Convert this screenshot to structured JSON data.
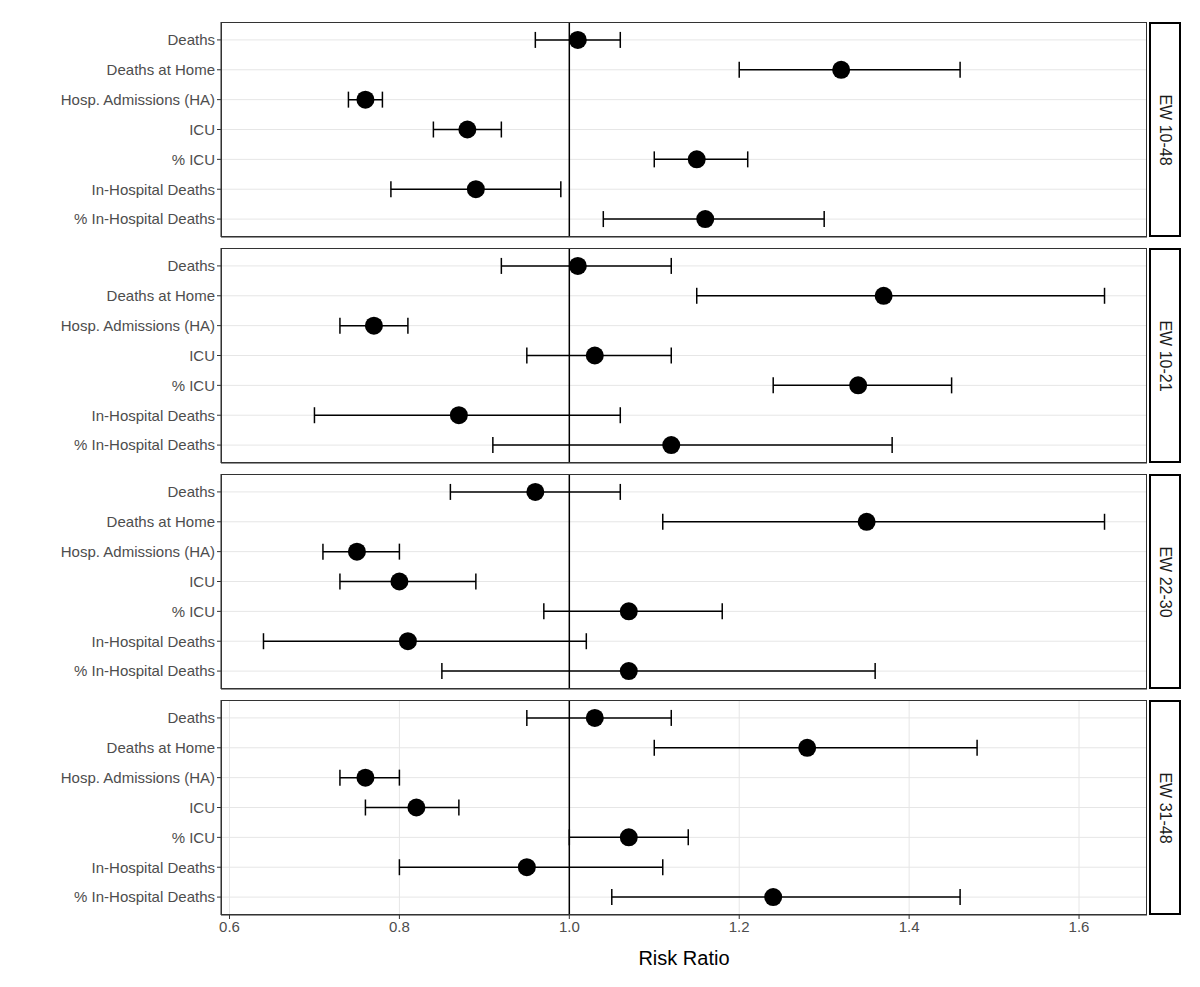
{
  "chart_data": [
    {
      "type": "scatter",
      "title": "EW 10-48",
      "categories": [
        "Deaths",
        "Deaths at Home",
        "Hosp. Admissions (HA)",
        "ICU",
        "% ICU",
        "In-Hospital Deaths",
        "% In-Hospital Deaths"
      ],
      "values": [
        1.01,
        1.32,
        0.76,
        0.88,
        1.15,
        0.89,
        1.16
      ],
      "ci_low": [
        0.96,
        1.2,
        0.74,
        0.84,
        1.1,
        0.79,
        1.04
      ],
      "ci_high": [
        1.06,
        1.46,
        0.78,
        0.92,
        1.21,
        0.99,
        1.3
      ],
      "xlim": [
        0.59,
        1.68
      ],
      "xticks": [
        0.6,
        0.8,
        {
          "value": 1,
          "label": "1.0"
        },
        1.2,
        1.4,
        1.6
      ],
      "grid": true,
      "reference_line": 1,
      "marker": "circle",
      "color": "#000000",
      "tick_labels": "y"
    },
    {
      "type": "scatter",
      "title": "EW 10-21",
      "categories": [
        "Deaths",
        "Deaths at Home",
        "Hosp. Admissions (HA)",
        "ICU",
        "% ICU",
        "In-Hospital Deaths",
        "% In-Hospital Deaths"
      ],
      "values": [
        1.01,
        1.37,
        0.77,
        1.03,
        1.34,
        0.87,
        1.12
      ],
      "ci_low": [
        0.92,
        1.15,
        0.73,
        0.95,
        1.24,
        0.7,
        0.91
      ],
      "ci_high": [
        1.12,
        1.63,
        0.81,
        1.12,
        1.45,
        1.06,
        1.38
      ],
      "xlim": [
        0.59,
        1.68
      ],
      "xticks": [
        0.6,
        0.8,
        {
          "value": 1,
          "label": "1.0"
        },
        1.2,
        1.4,
        1.6
      ],
      "grid": true,
      "reference_line": 1,
      "marker": "circle",
      "color": "#000000",
      "tick_labels": "y"
    },
    {
      "type": "scatter",
      "title": "EW 22-30",
      "categories": [
        "Deaths",
        "Deaths at Home",
        "Hosp. Admissions (HA)",
        "ICU",
        "% ICU",
        "In-Hospital Deaths",
        "% In-Hospital Deaths"
      ],
      "values": [
        0.96,
        1.35,
        0.75,
        0.8,
        1.07,
        0.81,
        1.07
      ],
      "ci_low": [
        0.86,
        1.11,
        0.71,
        0.73,
        0.97,
        0.64,
        0.85
      ],
      "ci_high": [
        1.06,
        1.63,
        0.8,
        0.89,
        1.18,
        1.02,
        1.36
      ],
      "xlim": [
        0.59,
        1.68
      ],
      "xticks": [
        0.6,
        0.8,
        {
          "value": 1,
          "label": "1.0"
        },
        1.2,
        1.4,
        1.6
      ],
      "grid": true,
      "reference_line": 1,
      "marker": "circle",
      "color": "#000000",
      "tick_labels": "y"
    },
    {
      "type": "scatter",
      "title": "EW 31-48",
      "x_label": "Risk Ratio",
      "categories": [
        "Deaths",
        "Deaths at Home",
        "Hosp. Admissions (HA)",
        "ICU",
        "% ICU",
        "In-Hospital Deaths",
        "% In-Hospital Deaths"
      ],
      "values": [
        1.03,
        1.28,
        0.76,
        0.82,
        1.07,
        0.95,
        1.24
      ],
      "ci_low": [
        0.95,
        1.1,
        0.73,
        0.76,
        1.0,
        0.8,
        1.05
      ],
      "ci_high": [
        1.12,
        1.48,
        0.8,
        0.87,
        1.14,
        1.11,
        1.46
      ],
      "xlim": [
        0.59,
        1.68
      ],
      "xticks": [
        0.6,
        0.8,
        {
          "value": 1,
          "label": "1.0"
        },
        1.2,
        1.4,
        1.6
      ],
      "grid": true,
      "reference_line": 1,
      "marker": "circle",
      "color": "#000000",
      "tick_labels": true
    }
  ]
}
